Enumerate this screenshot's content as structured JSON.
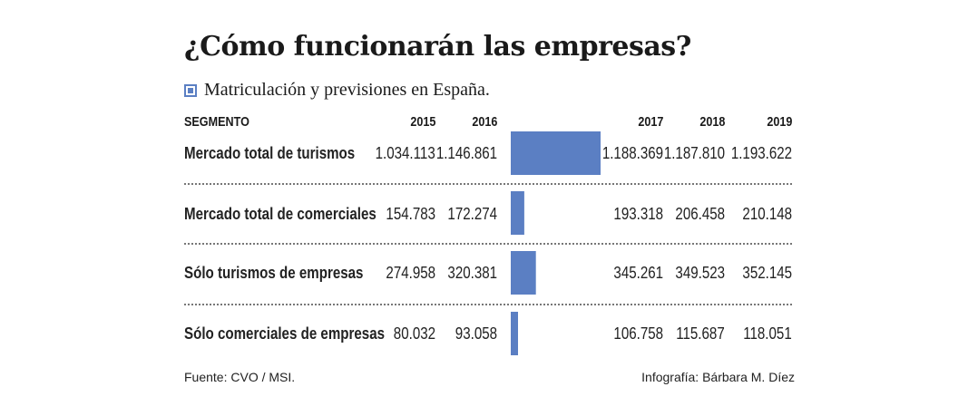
{
  "title": "¿Cómo funcionarán las empresas?",
  "subtitle": "Matriculación y previsiones en España.",
  "chart_data": {
    "type": "table",
    "bar_series": "2016",
    "bar_max": 1146861,
    "bar_color": "#5b7fc3",
    "headers": {
      "segment": "SEGMENTO",
      "years": [
        "2015",
        "2016",
        "2017",
        "2018",
        "2019"
      ]
    },
    "rows": [
      {
        "segment": "Mercado total de turismos",
        "values": [
          "1.034.113",
          "1.146.861",
          "1.188.369",
          "1.187.810",
          "1.193.622"
        ],
        "bar_value": 1146861
      },
      {
        "segment": "Mercado total de comerciales",
        "values": [
          "154.783",
          "172.274",
          "193.318",
          "206.458",
          "210.148"
        ],
        "bar_value": 172274
      },
      {
        "segment": "Sólo turismos de empresas",
        "values": [
          "274.958",
          "320.381",
          "345.261",
          "349.523",
          "352.145"
        ],
        "bar_value": 320381
      },
      {
        "segment": "Sólo comerciales de empresas",
        "values": [
          "80.032",
          "93.058",
          "106.758",
          "115.687",
          "118.051"
        ],
        "bar_value": 93058
      }
    ]
  },
  "footer": {
    "source": "Fuente: CVO / MSI.",
    "credit": "Infografía: Bárbara M. Díez"
  }
}
